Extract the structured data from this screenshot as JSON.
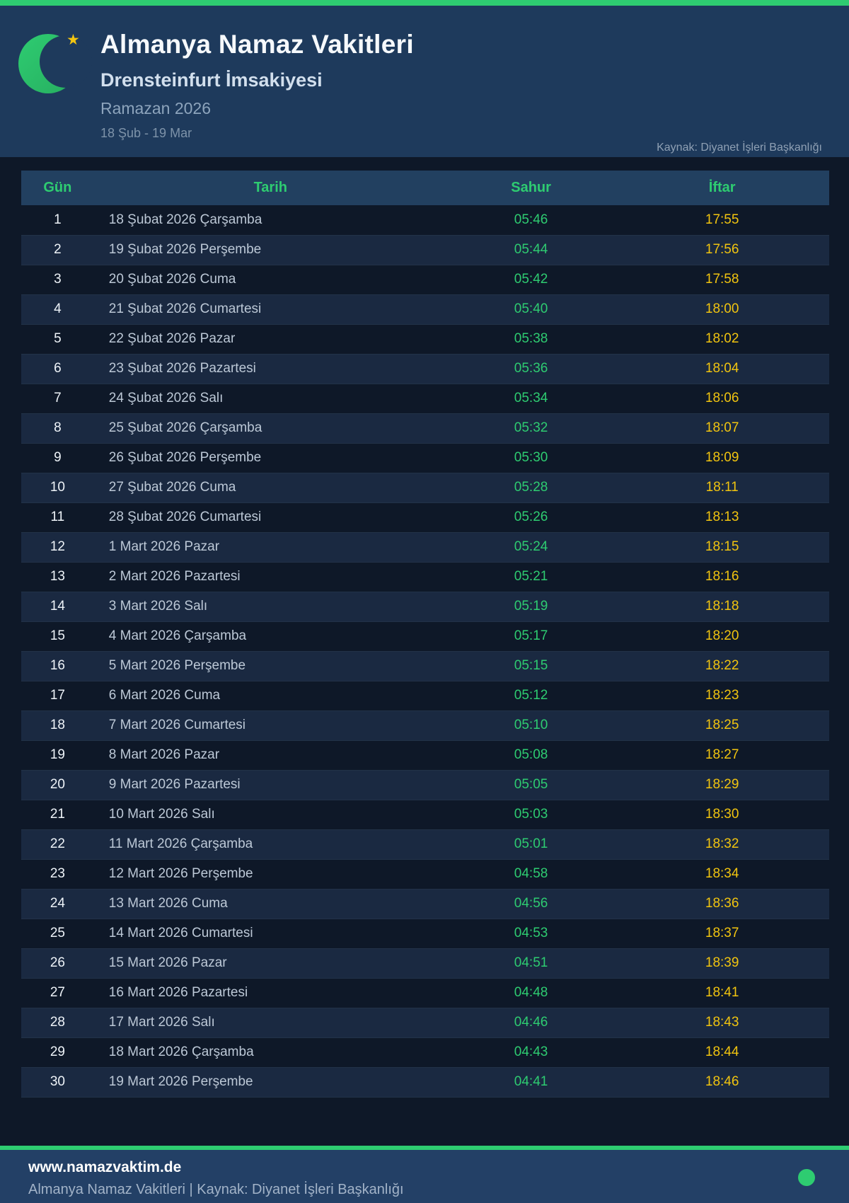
{
  "colors": {
    "accent_green": "#2ecc71",
    "accent_yellow": "#f1c40f",
    "panel_bg": "#1e3a5c",
    "page_bg": "#0e1828",
    "footer_bg": "#234066"
  },
  "header": {
    "logo_icon": "crescent-moon-icon",
    "star_icon": "star-icon",
    "star_glyph": "★",
    "title": "Almanya Namaz Vakitleri",
    "subtitle": "Drensteinfurt İmsakiyesi",
    "season": "Ramazan 2026",
    "date_range": "18 Şub - 19 Mar",
    "source": "Kaynak: Diyanet İşleri Başkanlığı"
  },
  "table": {
    "columns": [
      "Gün",
      "Tarih",
      "Sahur",
      "İftar"
    ],
    "rows": [
      {
        "day": "1",
        "date": "18 Şubat 2026 Çarşamba",
        "sahur": "05:46",
        "iftar": "17:55"
      },
      {
        "day": "2",
        "date": "19 Şubat 2026 Perşembe",
        "sahur": "05:44",
        "iftar": "17:56"
      },
      {
        "day": "3",
        "date": "20 Şubat 2026 Cuma",
        "sahur": "05:42",
        "iftar": "17:58"
      },
      {
        "day": "4",
        "date": "21 Şubat 2026 Cumartesi",
        "sahur": "05:40",
        "iftar": "18:00"
      },
      {
        "day": "5",
        "date": "22 Şubat 2026 Pazar",
        "sahur": "05:38",
        "iftar": "18:02"
      },
      {
        "day": "6",
        "date": "23 Şubat 2026 Pazartesi",
        "sahur": "05:36",
        "iftar": "18:04"
      },
      {
        "day": "7",
        "date": "24 Şubat 2026 Salı",
        "sahur": "05:34",
        "iftar": "18:06"
      },
      {
        "day": "8",
        "date": "25 Şubat 2026 Çarşamba",
        "sahur": "05:32",
        "iftar": "18:07"
      },
      {
        "day": "9",
        "date": "26 Şubat 2026 Perşembe",
        "sahur": "05:30",
        "iftar": "18:09"
      },
      {
        "day": "10",
        "date": "27 Şubat 2026 Cuma",
        "sahur": "05:28",
        "iftar": "18:11"
      },
      {
        "day": "11",
        "date": "28 Şubat 2026 Cumartesi",
        "sahur": "05:26",
        "iftar": "18:13"
      },
      {
        "day": "12",
        "date": "1 Mart 2026 Pazar",
        "sahur": "05:24",
        "iftar": "18:15"
      },
      {
        "day": "13",
        "date": "2 Mart 2026 Pazartesi",
        "sahur": "05:21",
        "iftar": "18:16"
      },
      {
        "day": "14",
        "date": "3 Mart 2026 Salı",
        "sahur": "05:19",
        "iftar": "18:18"
      },
      {
        "day": "15",
        "date": "4 Mart 2026 Çarşamba",
        "sahur": "05:17",
        "iftar": "18:20"
      },
      {
        "day": "16",
        "date": "5 Mart 2026 Perşembe",
        "sahur": "05:15",
        "iftar": "18:22"
      },
      {
        "day": "17",
        "date": "6 Mart 2026 Cuma",
        "sahur": "05:12",
        "iftar": "18:23"
      },
      {
        "day": "18",
        "date": "7 Mart 2026 Cumartesi",
        "sahur": "05:10",
        "iftar": "18:25"
      },
      {
        "day": "19",
        "date": "8 Mart 2026 Pazar",
        "sahur": "05:08",
        "iftar": "18:27"
      },
      {
        "day": "20",
        "date": "9 Mart 2026 Pazartesi",
        "sahur": "05:05",
        "iftar": "18:29"
      },
      {
        "day": "21",
        "date": "10 Mart 2026 Salı",
        "sahur": "05:03",
        "iftar": "18:30"
      },
      {
        "day": "22",
        "date": "11 Mart 2026 Çarşamba",
        "sahur": "05:01",
        "iftar": "18:32"
      },
      {
        "day": "23",
        "date": "12 Mart 2026 Perşembe",
        "sahur": "04:58",
        "iftar": "18:34"
      },
      {
        "day": "24",
        "date": "13 Mart 2026 Cuma",
        "sahur": "04:56",
        "iftar": "18:36"
      },
      {
        "day": "25",
        "date": "14 Mart 2026 Cumartesi",
        "sahur": "04:53",
        "iftar": "18:37"
      },
      {
        "day": "26",
        "date": "15 Mart 2026 Pazar",
        "sahur": "04:51",
        "iftar": "18:39"
      },
      {
        "day": "27",
        "date": "16 Mart 2026 Pazartesi",
        "sahur": "04:48",
        "iftar": "18:41"
      },
      {
        "day": "28",
        "date": "17 Mart 2026 Salı",
        "sahur": "04:46",
        "iftar": "18:43"
      },
      {
        "day": "29",
        "date": "18 Mart 2026 Çarşamba",
        "sahur": "04:43",
        "iftar": "18:44"
      },
      {
        "day": "30",
        "date": "19 Mart 2026 Perşembe",
        "sahur": "04:41",
        "iftar": "18:46"
      }
    ]
  },
  "footer": {
    "website": "www.namazvaktim.de",
    "info": "Almanya Namaz Vakitleri | Kaynak: Diyanet İşleri Başkanlığı",
    "status_icon": "green-dot-icon"
  }
}
